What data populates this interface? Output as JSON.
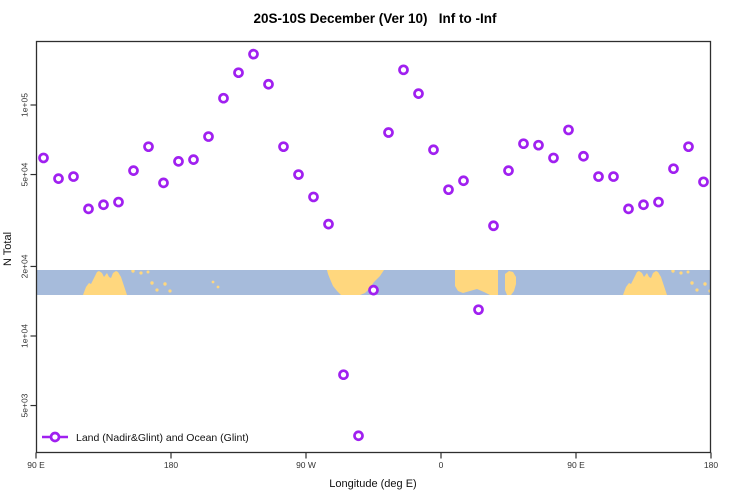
{
  "chart_data": {
    "type": "scatter",
    "title": "20S-10S December (Ver 10)   Inf to -Inf",
    "xlabel": "Longitude (deg E)",
    "ylabel": "N Total",
    "y_scale": "log",
    "grid": false,
    "x_axis": {
      "start_deg_east": 90,
      "span_deg": 450,
      "ticks": [
        {
          "deg": 90,
          "label": "90 E"
        },
        {
          "deg": 180,
          "label": "180"
        },
        {
          "deg": 270,
          "label": "90 W"
        },
        {
          "deg": 360,
          "label": "0"
        },
        {
          "deg": 450,
          "label": "90 E"
        },
        {
          "deg": 540,
          "label": "180"
        }
      ]
    },
    "y_ticks": [
      {
        "value": 100000,
        "label": "1e+05"
      },
      {
        "value": 50000,
        "label": "5e+04"
      },
      {
        "value": 20000,
        "label": "2e+04"
      },
      {
        "value": 10000,
        "label": "1e+04"
      },
      {
        "value": 5000,
        "label": "5e+03"
      }
    ],
    "ylim_approx": [
      3000,
      180000
    ],
    "legend": {
      "label": "Land (Nadir&Glint) and Ocean (Glint)",
      "position": "bottom-left"
    },
    "colors": {
      "marker": "#A020F0",
      "ocean": "#A6BBDB",
      "land": "#FFD77E"
    },
    "map_band": {
      "description": "coastline strip for latitude band 20S-10S drawn across plot",
      "top_value": 20000
    },
    "points": [
      {
        "deg": 95,
        "value": 59000
      },
      {
        "deg": 105,
        "value": 48000
      },
      {
        "deg": 115,
        "value": 49000
      },
      {
        "deg": 125,
        "value": 35500
      },
      {
        "deg": 135,
        "value": 37000
      },
      {
        "deg": 145,
        "value": 38000
      },
      {
        "deg": 155,
        "value": 52000
      },
      {
        "deg": 165,
        "value": 66000
      },
      {
        "deg": 175,
        "value": 46000
      },
      {
        "deg": 185,
        "value": 57000
      },
      {
        "deg": 195,
        "value": 58000
      },
      {
        "deg": 205,
        "value": 73000
      },
      {
        "deg": 215,
        "value": 107000
      },
      {
        "deg": 225,
        "value": 138000
      },
      {
        "deg": 235,
        "value": 166000
      },
      {
        "deg": 245,
        "value": 123000
      },
      {
        "deg": 255,
        "value": 66000
      },
      {
        "deg": 265,
        "value": 50000
      },
      {
        "deg": 275,
        "value": 40000
      },
      {
        "deg": 285,
        "value": 30500
      },
      {
        "deg": 295,
        "value": 6800
      },
      {
        "deg": 305,
        "value": 3700
      },
      {
        "deg": 315,
        "value": 15800
      },
      {
        "deg": 325,
        "value": 76000
      },
      {
        "deg": 335,
        "value": 142000
      },
      {
        "deg": 345,
        "value": 112000
      },
      {
        "deg": 355,
        "value": 64000
      },
      {
        "deg": 365,
        "value": 43000
      },
      {
        "deg": 375,
        "value": 47000
      },
      {
        "deg": 385,
        "value": 13000
      },
      {
        "deg": 395,
        "value": 30000
      },
      {
        "deg": 405,
        "value": 52000
      },
      {
        "deg": 415,
        "value": 68000
      },
      {
        "deg": 425,
        "value": 67000
      },
      {
        "deg": 435,
        "value": 59000
      },
      {
        "deg": 445,
        "value": 78000
      },
      {
        "deg": 455,
        "value": 60000
      },
      {
        "deg": 465,
        "value": 49000
      },
      {
        "deg": 475,
        "value": 49000
      },
      {
        "deg": 485,
        "value": 35500
      },
      {
        "deg": 495,
        "value": 37000
      },
      {
        "deg": 505,
        "value": 38000
      },
      {
        "deg": 515,
        "value": 53000
      },
      {
        "deg": 525,
        "value": 66000
      },
      {
        "deg": 535,
        "value": 46500
      }
    ]
  }
}
